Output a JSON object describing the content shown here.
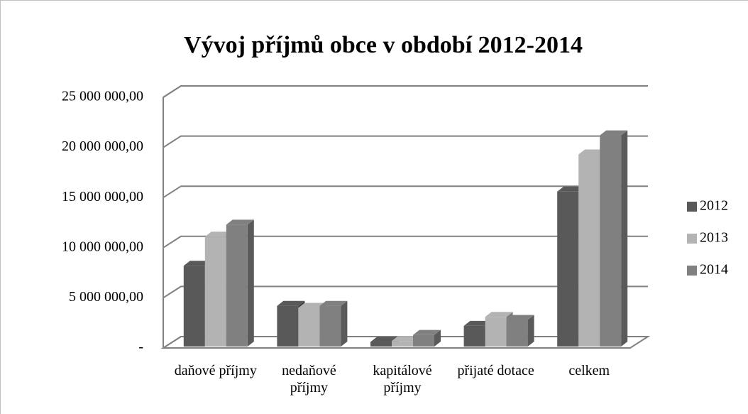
{
  "chart_data": {
    "type": "bar3d",
    "title": "Vývoj příjmů obce v období 2012-2014",
    "categories": [
      "daňové příjmy",
      "nedaňové příjmy",
      "kapitálové příjmy",
      "přijaté dotace",
      "celkem"
    ],
    "series": [
      {
        "name": "2012",
        "color": "#595959",
        "values": [
          8200000,
          4200000,
          600000,
          2200000,
          15600000
        ]
      },
      {
        "name": "2013",
        "color": "#b3b3b3",
        "values": [
          11100000,
          4000000,
          700000,
          3100000,
          19300000
        ]
      },
      {
        "name": "2014",
        "color": "#808080",
        "values": [
          12300000,
          4200000,
          1300000,
          2800000,
          21200000
        ]
      }
    ],
    "ylim": [
      0,
      25000000
    ],
    "yticks": [
      {
        "value": 0,
        "label": "-"
      },
      {
        "value": 5000000,
        "label": "5 000 000,00"
      },
      {
        "value": 10000000,
        "label": "10 000 000,00"
      },
      {
        "value": 15000000,
        "label": "15 000 000,00"
      },
      {
        "value": 20000000,
        "label": "20 000 000,00"
      },
      {
        "value": 25000000,
        "label": "25 000 000,00"
      }
    ],
    "grid": true,
    "legend": "right"
  }
}
